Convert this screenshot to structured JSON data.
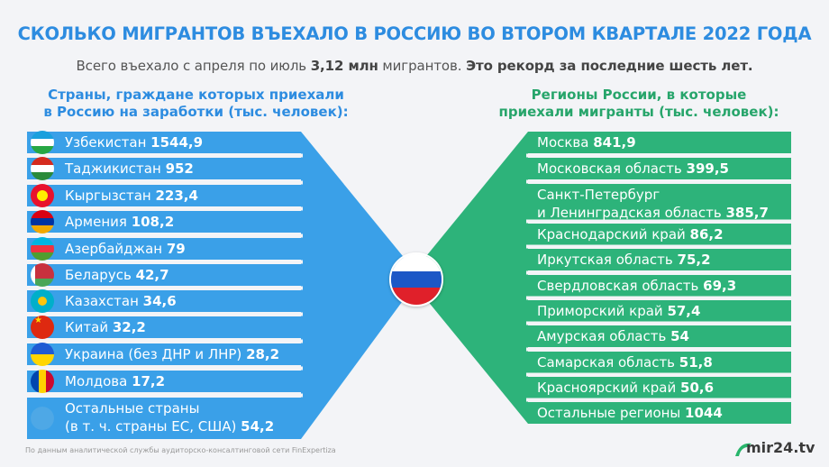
{
  "header": {
    "title": "СКОЛЬКО МИГРАНТОВ ВЪЕХАЛО В РОССИЮ ВО ВТОРОМ КВАРТАЛЕ 2022 ГОДА",
    "subtitle_part1": "Всего въехало с апреля по июль ",
    "subtitle_value": "3,12 млн",
    "subtitle_part2": " мигрантов. ",
    "subtitle_part3": "Это рекорд за последние шесть лет."
  },
  "left_heading": [
    "Страны, граждане которых приехали",
    "в Россию на заработки (тыс. человек):"
  ],
  "right_heading": [
    "Регионы России, в которые",
    "приехали мигранты (тыс. человек):"
  ],
  "chart_data": [
    {
      "type": "table",
      "title": "Страны, граждане которых приехали в Россию на заработки (тыс. человек):",
      "categories": [
        "Узбекистан",
        "Таджикистан",
        "Кыргызстан",
        "Армения",
        "Азербайджан",
        "Беларусь",
        "Казахстан",
        "Китай",
        "Украина (без ДНР и ЛНР)",
        "Молдова",
        "Остальные страны (в т. ч. страны ЕС, США)"
      ],
      "labels": [
        [
          "Узбекистан"
        ],
        [
          "Таджикистан"
        ],
        [
          "Кыргызстан"
        ],
        [
          "Армения"
        ],
        [
          "Азербайджан"
        ],
        [
          "Беларусь"
        ],
        [
          "Казахстан"
        ],
        [
          "Китай"
        ],
        [
          "Украина (без ДНР и ЛНР)"
        ],
        [
          "Молдова "
        ],
        [
          "Остальные страны",
          "(в т. ч. страны ЕС, США)"
        ]
      ],
      "values": [
        1544.9,
        952,
        223.4,
        108.2,
        79,
        42.7,
        34.6,
        32.2,
        28.2,
        17.2,
        54.2
      ],
      "value_labels": [
        "1544,9",
        "952",
        "223,4",
        "108,2",
        "79",
        "42,7",
        "34,6",
        "32,2",
        "28,2",
        "17,2",
        "54,2"
      ],
      "color": "#3aa0e8"
    },
    {
      "type": "table",
      "title": "Регионы России, в которые приехали мигранты (тыс. человек):",
      "categories": [
        "Москва",
        "Московская область",
        "Санкт-Петербург и Ленинградская область",
        "Краснодарский край",
        "Иркутская область",
        "Свердловская область",
        "Приморский край",
        "Амурская область",
        "Самарская область",
        "Красноярский край",
        "Остальные регионы"
      ],
      "labels": [
        [
          "Москва"
        ],
        [
          "Московская область"
        ],
        [
          "Санкт-Петербург",
          "и Ленинградская область"
        ],
        [
          "Краснодарский край"
        ],
        [
          "Иркутская область"
        ],
        [
          "Свердловская область"
        ],
        [
          "Приморский край"
        ],
        [
          "Амурская область"
        ],
        [
          "Самарская область"
        ],
        [
          "Красноярский край"
        ],
        [
          "Остальные регионы"
        ]
      ],
      "values": [
        841.9,
        399.5,
        385.7,
        86.2,
        75.2,
        69.3,
        57.4,
        54,
        51.8,
        50.6,
        1044
      ],
      "value_labels": [
        "841,9",
        "399,5",
        "385,7",
        "86,2",
        "75,2",
        "69,3",
        "57,4",
        "54",
        "51,8",
        "50,6",
        "1044"
      ],
      "color": "#2db37a"
    }
  ],
  "flags": [
    "uzbekistan-flag-icon",
    "tajikistan-flag-icon",
    "kyrgyzstan-flag-icon",
    "armenia-flag-icon",
    "azerbaijan-flag-icon",
    "belarus-flag-icon",
    "kazakhstan-flag-icon",
    "china-flag-icon",
    "ukraine-flag-icon",
    "moldova-flag-icon",
    "globe-icon"
  ],
  "center_flag": "russia-flag-icon",
  "footer": "По данным аналитической службы аудиторско-консалтинговой сети FinExpertiza",
  "logo": "mir24.tv",
  "colors": {
    "title": "#2d8ce0",
    "left": "#3aa0e8",
    "right": "#2db37a",
    "right_heading": "#27a56b"
  }
}
